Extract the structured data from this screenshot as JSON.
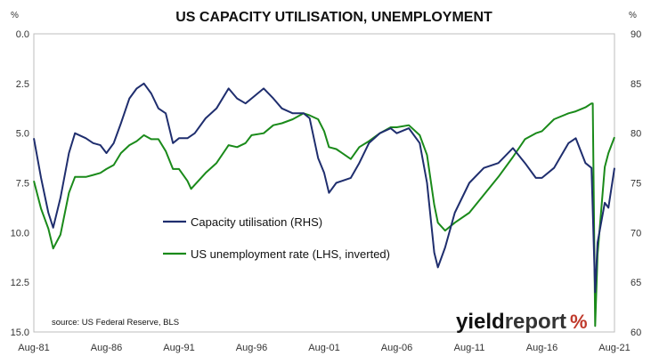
{
  "chart_data": {
    "type": "line",
    "title": "US CAPACITY UTILISATION, UNEMPLOYMENT",
    "left_unit": "%",
    "right_unit": "%",
    "source": "source: US Federal Reserve, BLS",
    "logo": {
      "text": "yieldreport",
      "symbol": "%"
    },
    "x_range": [
      "1981-08",
      "2021-08"
    ],
    "x_ticks": [
      "Aug-81",
      "Aug-86",
      "Aug-91",
      "Aug-96",
      "Aug-01",
      "Aug-06",
      "Aug-11",
      "Aug-16",
      "Aug-21"
    ],
    "y_left": {
      "inverted": true,
      "range": [
        0,
        15
      ],
      "ticks": [
        "0.0",
        "2.5",
        "5.0",
        "7.5",
        "10.0",
        "12.5",
        "15.0"
      ]
    },
    "y_right": {
      "range": [
        60,
        90
      ],
      "ticks": [
        "90",
        "85",
        "80",
        "75",
        "70",
        "65",
        "60"
      ]
    },
    "grid": false,
    "legend_placement": "middle-left",
    "series": [
      {
        "name": "Capacity utilisation (RHS)",
        "axis": "right",
        "color": "#1f2e6e",
        "points": [
          [
            "1981-08",
            79.5
          ],
          [
            "1982-02",
            75.5
          ],
          [
            "1982-08",
            72.0
          ],
          [
            "1982-12",
            70.5
          ],
          [
            "1983-06",
            73.5
          ],
          [
            "1984-01",
            78.0
          ],
          [
            "1984-06",
            80.0
          ],
          [
            "1985-03",
            79.5
          ],
          [
            "1985-09",
            79.0
          ],
          [
            "1986-03",
            78.8
          ],
          [
            "1986-08",
            78.0
          ],
          [
            "1987-02",
            79.0
          ],
          [
            "1987-08",
            81.0
          ],
          [
            "1988-03",
            83.5
          ],
          [
            "1988-09",
            84.5
          ],
          [
            "1989-03",
            85.0
          ],
          [
            "1989-09",
            84.0
          ],
          [
            "1990-03",
            82.5
          ],
          [
            "1990-09",
            82.0
          ],
          [
            "1991-03",
            79.0
          ],
          [
            "1991-08",
            79.5
          ],
          [
            "1992-03",
            79.5
          ],
          [
            "1992-09",
            80.0
          ],
          [
            "1993-06",
            81.5
          ],
          [
            "1994-03",
            82.5
          ],
          [
            "1995-01",
            84.5
          ],
          [
            "1995-08",
            83.5
          ],
          [
            "1996-03",
            83.0
          ],
          [
            "1996-08",
            83.5
          ],
          [
            "1997-06",
            84.5
          ],
          [
            "1998-02",
            83.5
          ],
          [
            "1998-09",
            82.5
          ],
          [
            "1999-06",
            82.0
          ],
          [
            "2000-03",
            82.0
          ],
          [
            "2000-08",
            81.5
          ],
          [
            "2001-03",
            77.5
          ],
          [
            "2001-08",
            76.0
          ],
          [
            "2001-12",
            74.0
          ],
          [
            "2002-06",
            75.0
          ],
          [
            "2003-06",
            75.5
          ],
          [
            "2004-01",
            77.0
          ],
          [
            "2004-09",
            79.0
          ],
          [
            "2005-06",
            80.0
          ],
          [
            "2006-03",
            80.5
          ],
          [
            "2006-08",
            80.0
          ],
          [
            "2007-06",
            80.5
          ],
          [
            "2008-03",
            79.0
          ],
          [
            "2008-09",
            75.0
          ],
          [
            "2009-03",
            68.0
          ],
          [
            "2009-06",
            66.5
          ],
          [
            "2009-12",
            68.5
          ],
          [
            "2010-08",
            72.0
          ],
          [
            "2011-08",
            75.0
          ],
          [
            "2012-08",
            76.5
          ],
          [
            "2013-08",
            77.0
          ],
          [
            "2014-08",
            78.5
          ],
          [
            "2015-06",
            77.0
          ],
          [
            "2016-03",
            75.5
          ],
          [
            "2016-08",
            75.5
          ],
          [
            "2017-06",
            76.5
          ],
          [
            "2018-06",
            79.0
          ],
          [
            "2018-12",
            79.5
          ],
          [
            "2019-08",
            77.0
          ],
          [
            "2020-01",
            76.5
          ],
          [
            "2020-04",
            64.0
          ],
          [
            "2020-06",
            69.0
          ],
          [
            "2020-12",
            73.0
          ],
          [
            "2021-03",
            72.5
          ],
          [
            "2021-08",
            76.5
          ]
        ]
      },
      {
        "name": "US unemployment rate (LHS, inverted)",
        "axis": "left",
        "color": "#1a8a1a",
        "points": [
          [
            "1981-08",
            7.4
          ],
          [
            "1982-02",
            8.8
          ],
          [
            "1982-08",
            9.8
          ],
          [
            "1982-12",
            10.8
          ],
          [
            "1983-06",
            10.1
          ],
          [
            "1984-01",
            8.0
          ],
          [
            "1984-06",
            7.2
          ],
          [
            "1985-03",
            7.2
          ],
          [
            "1985-09",
            7.1
          ],
          [
            "1986-03",
            7.0
          ],
          [
            "1986-08",
            6.8
          ],
          [
            "1987-02",
            6.6
          ],
          [
            "1987-08",
            6.0
          ],
          [
            "1988-03",
            5.6
          ],
          [
            "1988-09",
            5.4
          ],
          [
            "1989-03",
            5.1
          ],
          [
            "1989-09",
            5.3
          ],
          [
            "1990-03",
            5.3
          ],
          [
            "1990-09",
            5.9
          ],
          [
            "1991-03",
            6.8
          ],
          [
            "1991-08",
            6.8
          ],
          [
            "1992-03",
            7.4
          ],
          [
            "1992-06",
            7.8
          ],
          [
            "1992-09",
            7.6
          ],
          [
            "1993-06",
            7.0
          ],
          [
            "1994-03",
            6.5
          ],
          [
            "1995-01",
            5.6
          ],
          [
            "1995-08",
            5.7
          ],
          [
            "1996-03",
            5.5
          ],
          [
            "1996-08",
            5.1
          ],
          [
            "1997-06",
            5.0
          ],
          [
            "1998-02",
            4.6
          ],
          [
            "1998-09",
            4.5
          ],
          [
            "1999-06",
            4.3
          ],
          [
            "2000-03",
            4.0
          ],
          [
            "2000-08",
            4.1
          ],
          [
            "2001-03",
            4.3
          ],
          [
            "2001-08",
            4.9
          ],
          [
            "2001-12",
            5.7
          ],
          [
            "2002-06",
            5.8
          ],
          [
            "2003-06",
            6.3
          ],
          [
            "2004-01",
            5.7
          ],
          [
            "2004-09",
            5.4
          ],
          [
            "2005-06",
            5.0
          ],
          [
            "2006-03",
            4.7
          ],
          [
            "2006-08",
            4.7
          ],
          [
            "2007-06",
            4.6
          ],
          [
            "2008-03",
            5.1
          ],
          [
            "2008-09",
            6.1
          ],
          [
            "2009-03",
            8.6
          ],
          [
            "2009-06",
            9.5
          ],
          [
            "2009-12",
            9.9
          ],
          [
            "2010-08",
            9.5
          ],
          [
            "2011-08",
            9.0
          ],
          [
            "2012-08",
            8.1
          ],
          [
            "2013-08",
            7.2
          ],
          [
            "2014-08",
            6.2
          ],
          [
            "2015-06",
            5.3
          ],
          [
            "2016-03",
            5.0
          ],
          [
            "2016-08",
            4.9
          ],
          [
            "2017-06",
            4.3
          ],
          [
            "2018-06",
            4.0
          ],
          [
            "2018-12",
            3.9
          ],
          [
            "2019-08",
            3.7
          ],
          [
            "2020-01",
            3.5
          ],
          [
            "2020-02",
            3.5
          ],
          [
            "2020-04",
            14.7
          ],
          [
            "2020-06",
            11.1
          ],
          [
            "2020-12",
            6.7
          ],
          [
            "2021-03",
            6.0
          ],
          [
            "2021-08",
            5.2
          ]
        ]
      }
    ]
  }
}
